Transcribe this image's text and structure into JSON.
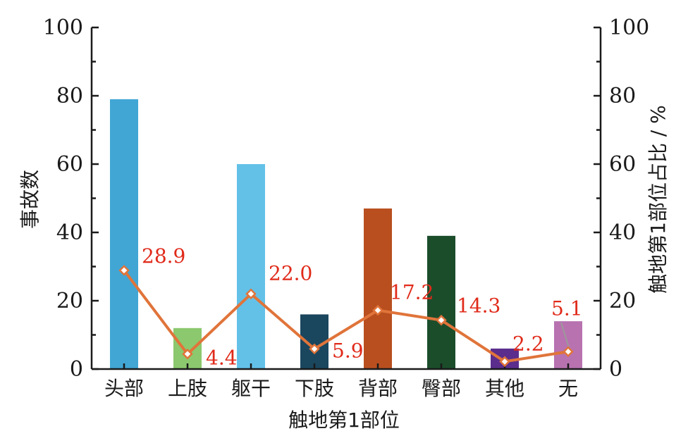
{
  "chart_data": {
    "type": "bar",
    "categories": [
      "头部",
      "上肢",
      "躯干",
      "下肢",
      "背部",
      "臀部",
      "其他",
      "无"
    ],
    "bar_values": [
      79,
      12,
      60,
      16,
      47,
      39,
      6,
      14
    ],
    "bar_colors": [
      "#41a6d4",
      "#8cc86e",
      "#63c1e8",
      "#1a465e",
      "#b94f1f",
      "#1b4d2b",
      "#5b2d8c",
      "#b872b0"
    ],
    "line_values": [
      28.9,
      4.4,
      22.0,
      5.9,
      17.2,
      14.3,
      2.2,
      5.1
    ],
    "line_labels": [
      "28.9",
      "4.4",
      "22.0",
      "5.9",
      "17.2",
      "14.3",
      "2.2",
      "5.1"
    ],
    "line_color": "#e0743a",
    "marker_fill": "#ffffff",
    "label_color": "#e02a1a",
    "xlabel": "触地第1部位",
    "ylabel_left": "事故数",
    "ylabel_right": "触地第1部位占比 / %",
    "ylim_left": [
      0,
      100
    ],
    "ylim_right": [
      0,
      100
    ],
    "yticks_left": [
      "0",
      "20",
      "40",
      "60",
      "80",
      "100"
    ],
    "yticks_right": [
      "0",
      "20",
      "40",
      "60",
      "80",
      "100"
    ],
    "grid": false
  }
}
